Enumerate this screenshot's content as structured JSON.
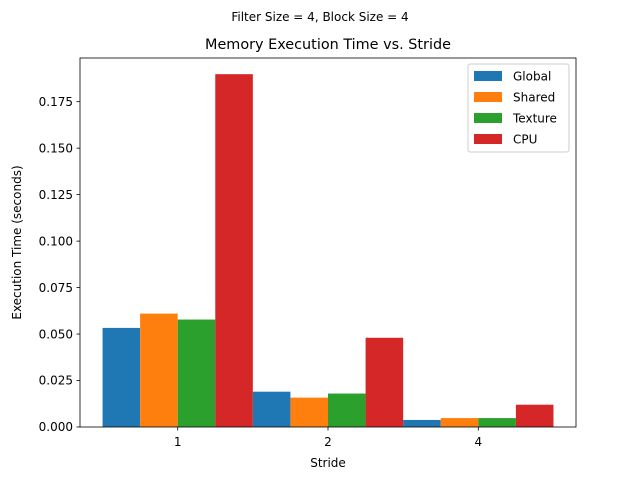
{
  "chart_data": {
    "type": "bar",
    "suptitle": "Filter Size = 4, Block Size = 4",
    "title": "Memory Execution Time vs. Stride",
    "xlabel": "Stride",
    "ylabel": "Execution Time (seconds)",
    "categories": [
      "1",
      "2",
      "4"
    ],
    "ylim": [
      0,
      0.1985
    ],
    "yticks": [
      "0.000",
      "0.025",
      "0.050",
      "0.075",
      "0.100",
      "0.125",
      "0.150",
      "0.175"
    ],
    "grid": false,
    "legend_position": "upper right",
    "series": [
      {
        "name": "Global",
        "color": "#1f77b4",
        "values": [
          0.0533,
          0.019,
          0.0038
        ]
      },
      {
        "name": "Shared",
        "color": "#ff7f0e",
        "values": [
          0.061,
          0.0158,
          0.0048
        ]
      },
      {
        "name": "Texture",
        "color": "#2ca02c",
        "values": [
          0.0578,
          0.018,
          0.0048
        ]
      },
      {
        "name": "CPU",
        "color": "#d62728",
        "values": [
          0.1898,
          0.048,
          0.012
        ]
      }
    ]
  }
}
